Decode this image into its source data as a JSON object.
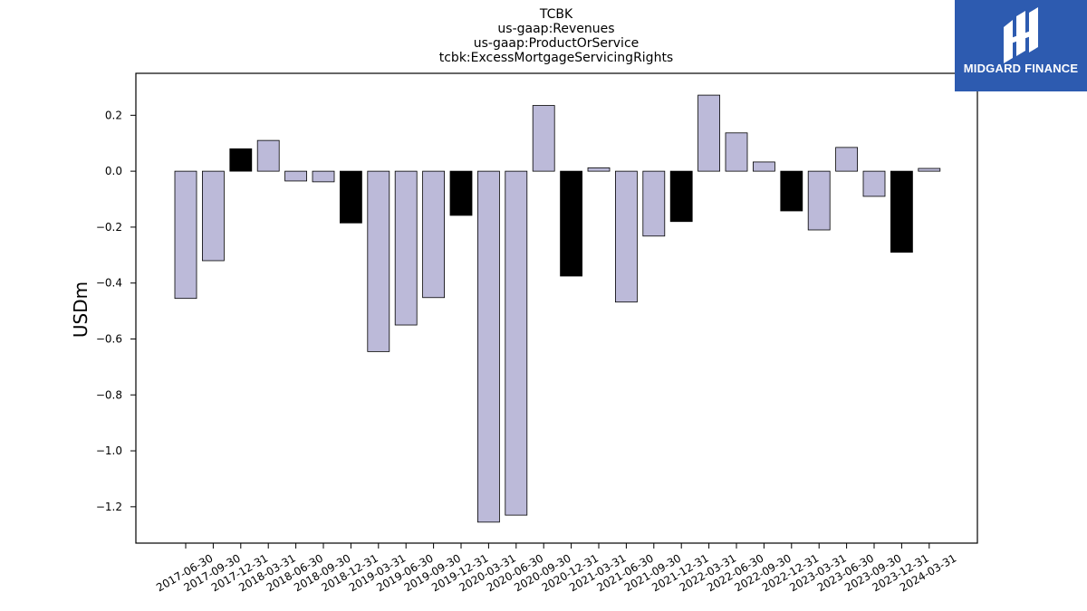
{
  "chart_data": {
    "type": "bar",
    "title_lines": [
      "TCBK",
      "us-gaap:Revenues",
      "us-gaap:ProductOrService",
      "tcbk:ExcessMortgageServicingRights"
    ],
    "ylabel": "USDm",
    "xlabel": "",
    "ylim": [
      -1.33,
      0.35
    ],
    "yticks": [
      -1.2,
      -1.0,
      -0.8,
      -0.6,
      -0.4,
      -0.2,
      0.0,
      0.2
    ],
    "ytick_labels": [
      "−1.2",
      "−1.0",
      "−0.8",
      "−0.6",
      "−0.4",
      "−0.2",
      "0.0",
      "0.2"
    ],
    "categories": [
      "2017-06-30",
      "2017-09-30",
      "2017-12-31",
      "2018-03-31",
      "2018-06-30",
      "2018-09-30",
      "2018-12-31",
      "2019-03-31",
      "2019-06-30",
      "2019-09-30",
      "2019-12-31",
      "2020-03-31",
      "2020-06-30",
      "2020-09-30",
      "2020-12-31",
      "2021-03-31",
      "2021-06-30",
      "2021-09-30",
      "2021-12-31",
      "2022-03-31",
      "2022-06-30",
      "2022-09-30",
      "2022-12-31",
      "2023-03-31",
      "2023-06-30",
      "2023-09-30",
      "2023-12-31",
      "2024-03-31"
    ],
    "values": [
      -0.455,
      -0.32,
      0.08,
      0.11,
      -0.035,
      -0.038,
      -0.185,
      -0.645,
      -0.55,
      -0.452,
      -0.158,
      -1.255,
      -1.23,
      0.235,
      -0.375,
      0.012,
      -0.468,
      -0.232,
      -0.18,
      0.272,
      0.137,
      0.033,
      -0.142,
      -0.21,
      0.085,
      -0.09,
      -0.29,
      0.01
    ],
    "bar_colors": [
      "#bcbad9",
      "#bcbad9",
      "#000000",
      "#bcbad9",
      "#bcbad9",
      "#bcbad9",
      "#000000",
      "#bcbad9",
      "#bcbad9",
      "#bcbad9",
      "#000000",
      "#bcbad9",
      "#bcbad9",
      "#bcbad9",
      "#000000",
      "#bcbad9",
      "#bcbad9",
      "#bcbad9",
      "#000000",
      "#bcbad9",
      "#bcbad9",
      "#bcbad9",
      "#000000",
      "#bcbad9",
      "#bcbad9",
      "#bcbad9",
      "#000000",
      "#bcbad9"
    ],
    "grid": false,
    "legend": "none"
  },
  "logo": {
    "text": "MIDGARD FINANCE",
    "background": "#2d5bb0",
    "icon": "midgard-logo-icon"
  }
}
